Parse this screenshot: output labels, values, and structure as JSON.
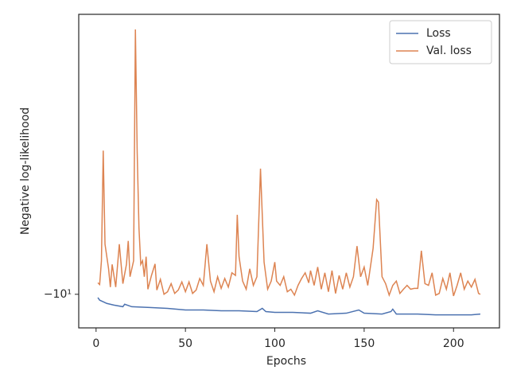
{
  "chart_data": {
    "type": "line",
    "xlabel": "Epochs",
    "ylabel": "Negative log-likelihood",
    "yscale": "symlog",
    "legend": "upper right",
    "xlim": [
      -9.7,
      225.7
    ],
    "xticks": [
      0,
      50,
      100,
      150,
      200
    ],
    "ylim": [
      -10.83,
      -5
    ],
    "yticks": [
      {
        "value": -10,
        "label": "−10¹"
      }
    ],
    "series": [
      {
        "name": "Loss",
        "color": "#4c72b0",
        "x": [
          1,
          2,
          4,
          6,
          10,
          15,
          16,
          20,
          30,
          40,
          50,
          60,
          70,
          80,
          90,
          93,
          95,
          100,
          110,
          120,
          124,
          130,
          140,
          147,
          150,
          160,
          165,
          166,
          168,
          180,
          190,
          200,
          210,
          215
        ],
        "values": [
          -10.08,
          -10.14,
          -10.18,
          -10.22,
          -10.26,
          -10.3,
          -10.24,
          -10.3,
          -10.32,
          -10.34,
          -10.38,
          -10.38,
          -10.4,
          -10.4,
          -10.42,
          -10.34,
          -10.42,
          -10.44,
          -10.44,
          -10.46,
          -10.4,
          -10.48,
          -10.46,
          -10.38,
          -10.46,
          -10.48,
          -10.42,
          -10.36,
          -10.48,
          -10.48,
          -10.5,
          -10.5,
          -10.5,
          -10.48
        ]
      },
      {
        "name": "Val. loss",
        "color": "#dd8452",
        "x": [
          1,
          2,
          3,
          4,
          5,
          7,
          8,
          9,
          11,
          13,
          15,
          17,
          18,
          19,
          21,
          22,
          23,
          24,
          25,
          26,
          27,
          28,
          29,
          31,
          33,
          34,
          36,
          38,
          40,
          42,
          44,
          46,
          48,
          50,
          52,
          54,
          56,
          58,
          60,
          62,
          64,
          66,
          68,
          70,
          72,
          74,
          76,
          78,
          79,
          80,
          82,
          84,
          86,
          88,
          90,
          92,
          94,
          96,
          98,
          100,
          101,
          103,
          105,
          107,
          109,
          111,
          113,
          115,
          117,
          119,
          120,
          122,
          124,
          126,
          128,
          130,
          132,
          134,
          136,
          138,
          140,
          142,
          144,
          146,
          148,
          150,
          152,
          154,
          155,
          157,
          158,
          160,
          162,
          164,
          166,
          168,
          170,
          172,
          174,
          176,
          178,
          180,
          182,
          184,
          186,
          188,
          190,
          192,
          194,
          196,
          198,
          200,
          202,
          204,
          206,
          208,
          210,
          212,
          214,
          215
        ],
        "values": [
          -9.73,
          -9.77,
          -9.23,
          -7.06,
          -8.87,
          -9.41,
          -9.83,
          -9.31,
          -9.83,
          -8.87,
          -9.75,
          -9.31,
          -8.8,
          -9.59,
          -9.23,
          -5.2,
          -7.08,
          -8.53,
          -9.31,
          -9.23,
          -9.59,
          -9.14,
          -9.88,
          -9.56,
          -9.3,
          -9.9,
          -9.65,
          -10.0,
          -9.94,
          -9.75,
          -9.98,
          -9.9,
          -9.71,
          -9.94,
          -9.71,
          -9.98,
          -9.9,
          -9.63,
          -9.79,
          -8.87,
          -9.69,
          -9.94,
          -9.59,
          -9.86,
          -9.63,
          -9.83,
          -9.5,
          -9.56,
          -8.26,
          -9.14,
          -9.69,
          -9.88,
          -9.41,
          -9.79,
          -9.59,
          -7.38,
          -9.26,
          -9.88,
          -9.69,
          -9.26,
          -9.69,
          -9.79,
          -9.59,
          -9.94,
          -9.88,
          -10.02,
          -9.79,
          -9.63,
          -9.5,
          -9.73,
          -9.45,
          -9.79,
          -9.37,
          -9.88,
          -9.5,
          -9.94,
          -9.45,
          -9.98,
          -9.56,
          -9.88,
          -9.5,
          -9.83,
          -9.59,
          -8.91,
          -9.59,
          -9.37,
          -9.79,
          -9.23,
          -8.96,
          -7.96,
          -8.01,
          -9.59,
          -9.75,
          -10.02,
          -9.79,
          -9.69,
          -9.98,
          -9.88,
          -9.79,
          -9.88,
          -9.86,
          -9.86,
          -9.01,
          -9.75,
          -9.79,
          -9.5,
          -10.02,
          -9.98,
          -9.63,
          -9.88,
          -9.5,
          -10.04,
          -9.79,
          -9.5,
          -9.88,
          -9.69,
          -9.83,
          -9.65,
          -9.98,
          -10.0
        ]
      }
    ]
  }
}
